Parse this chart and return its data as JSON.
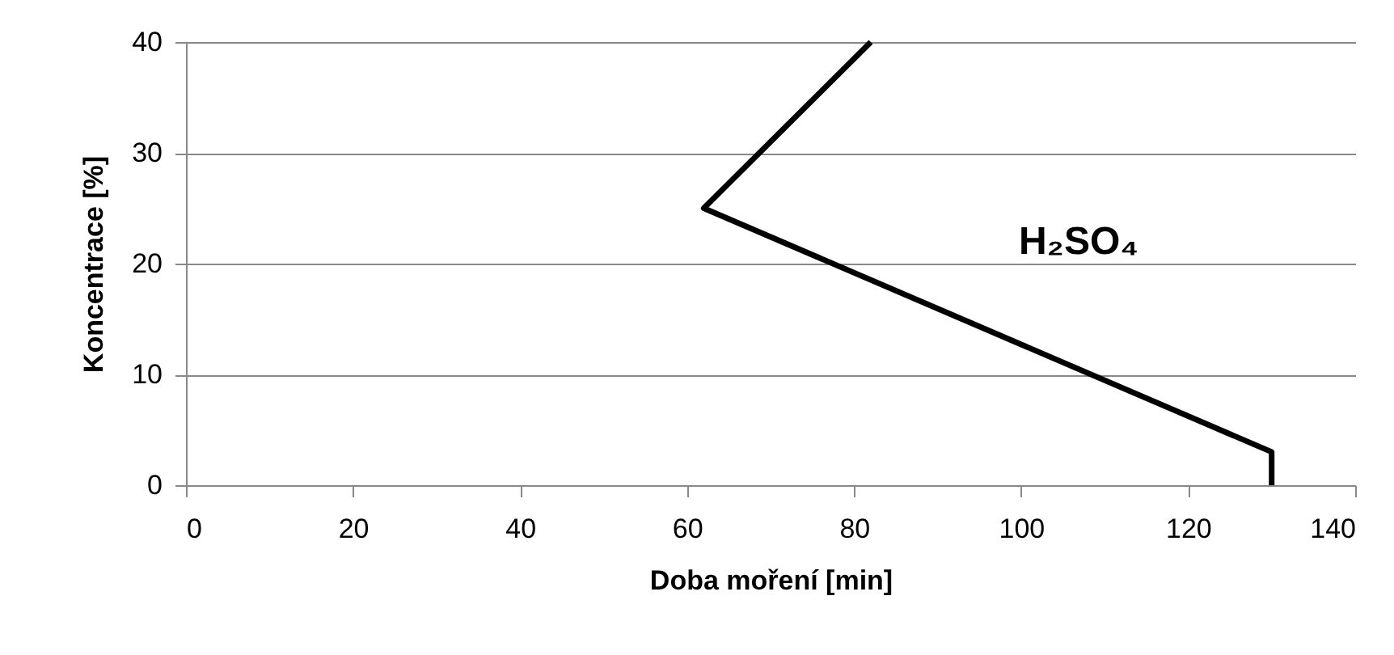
{
  "chart_data": {
    "type": "line",
    "xlabel": "Doba moření [min]",
    "ylabel": "Koncentrace [%]",
    "x": [
      82,
      62,
      130,
      130
    ],
    "series": [
      {
        "color": "#000000",
        "values": [
          40,
          25,
          3,
          0
        ]
      }
    ],
    "xlim": [
      0,
      140
    ],
    "xticks": [
      0,
      20,
      40,
      60,
      80,
      100,
      120,
      140
    ],
    "ylim": [
      0,
      40
    ],
    "yticks": [
      0,
      10,
      20,
      30,
      40
    ],
    "grid": "y",
    "marker": "none",
    "line_style": "solid",
    "annotations": [
      "H₂SO₄"
    ]
  }
}
